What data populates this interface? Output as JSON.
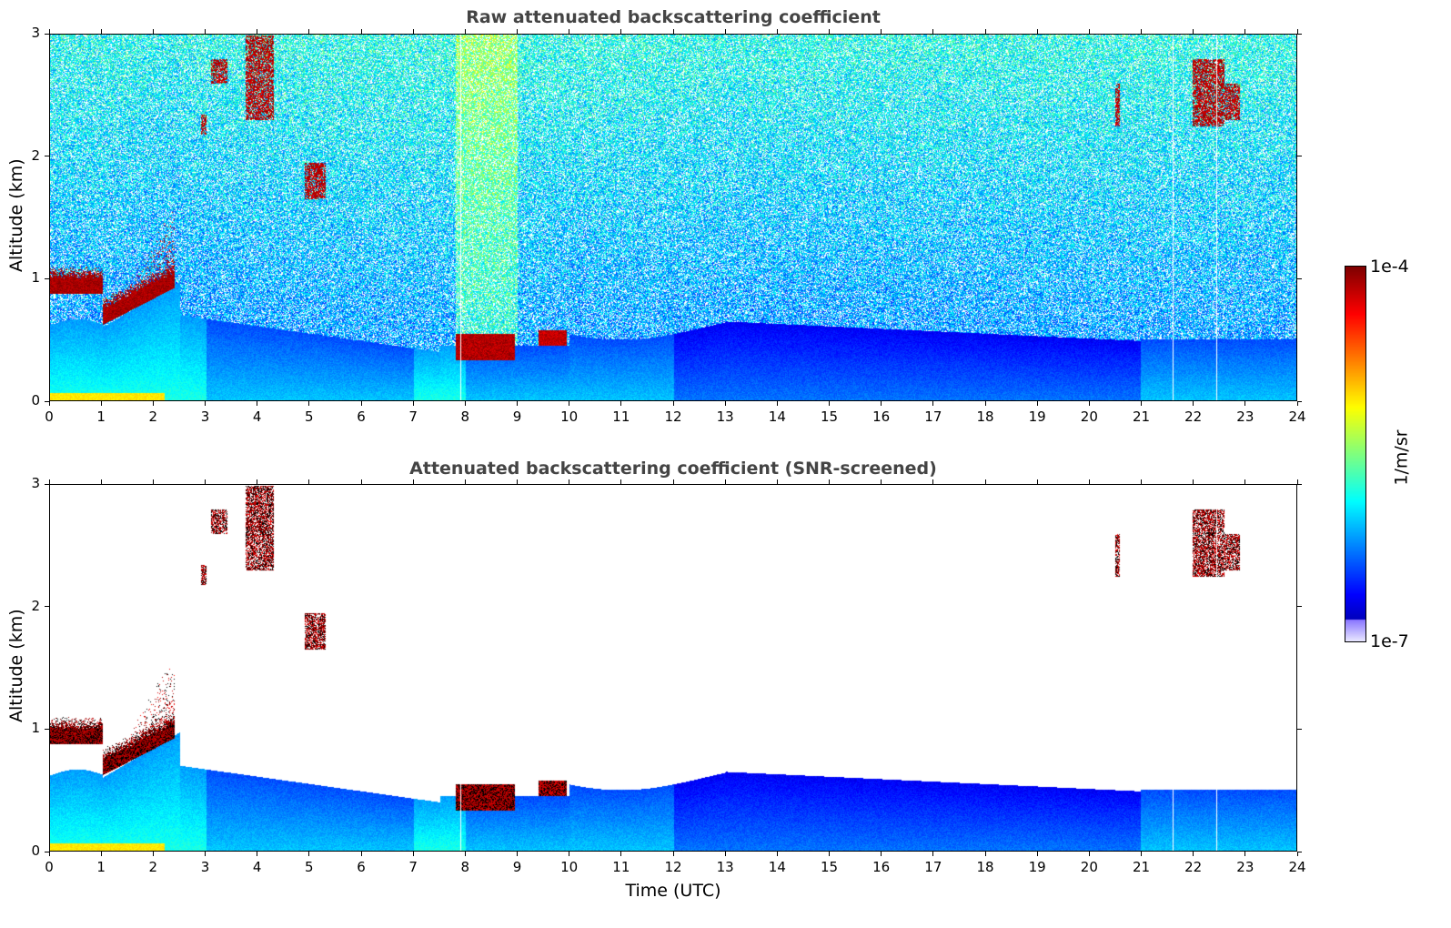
{
  "chart_data": [
    {
      "type": "heatmap",
      "title": "Raw attenuated backscattering coefficient",
      "ylabel": "Altitude (km)",
      "xlabel": "",
      "xlim": [
        0,
        24
      ],
      "ylim": [
        0,
        3
      ],
      "xticks": [
        "0",
        "1",
        "2",
        "3",
        "4",
        "5",
        "6",
        "7",
        "8",
        "9",
        "10",
        "11",
        "12",
        "13",
        "14",
        "15",
        "16",
        "17",
        "18",
        "19",
        "20",
        "21",
        "22",
        "23",
        "24"
      ],
      "yticks": [
        "0",
        "1",
        "2",
        "3"
      ],
      "screened": false,
      "features": [
        {
          "name": "boundary-layer-cloud",
          "x": [
            0,
            2.4
          ],
          "y": [
            0.6,
            1.05
          ]
        },
        {
          "name": "low-cloud",
          "x": [
            7.8,
            9.9
          ],
          "y": [
            0.33,
            0.58
          ]
        },
        {
          "name": "cirrus",
          "x": [
            2.9,
            4.3
          ],
          "y": [
            2.2,
            3.0
          ]
        },
        {
          "name": "cirrus",
          "x": [
            20.5,
            20.6
          ],
          "y": [
            2.3,
            2.6
          ]
        },
        {
          "name": "cirrus",
          "x": [
            22.0,
            22.9
          ],
          "y": [
            2.3,
            2.8
          ]
        }
      ]
    },
    {
      "type": "heatmap",
      "title": "Attenuated backscattering coefficient (SNR-screened)",
      "ylabel": "Altitude (km)",
      "xlabel": "Time (UTC)",
      "xlim": [
        0,
        24
      ],
      "ylim": [
        0,
        3
      ],
      "xticks": [
        "0",
        "1",
        "2",
        "3",
        "4",
        "5",
        "6",
        "7",
        "8",
        "9",
        "10",
        "11",
        "12",
        "13",
        "14",
        "15",
        "16",
        "17",
        "18",
        "19",
        "20",
        "21",
        "22",
        "23",
        "24"
      ],
      "yticks": [
        "0",
        "1",
        "2",
        "3"
      ],
      "screened": true
    }
  ],
  "colorbar": {
    "max_label": "1e-4",
    "min_label": "1e-7",
    "unit": "1/m/sr",
    "colormap": "jet"
  }
}
